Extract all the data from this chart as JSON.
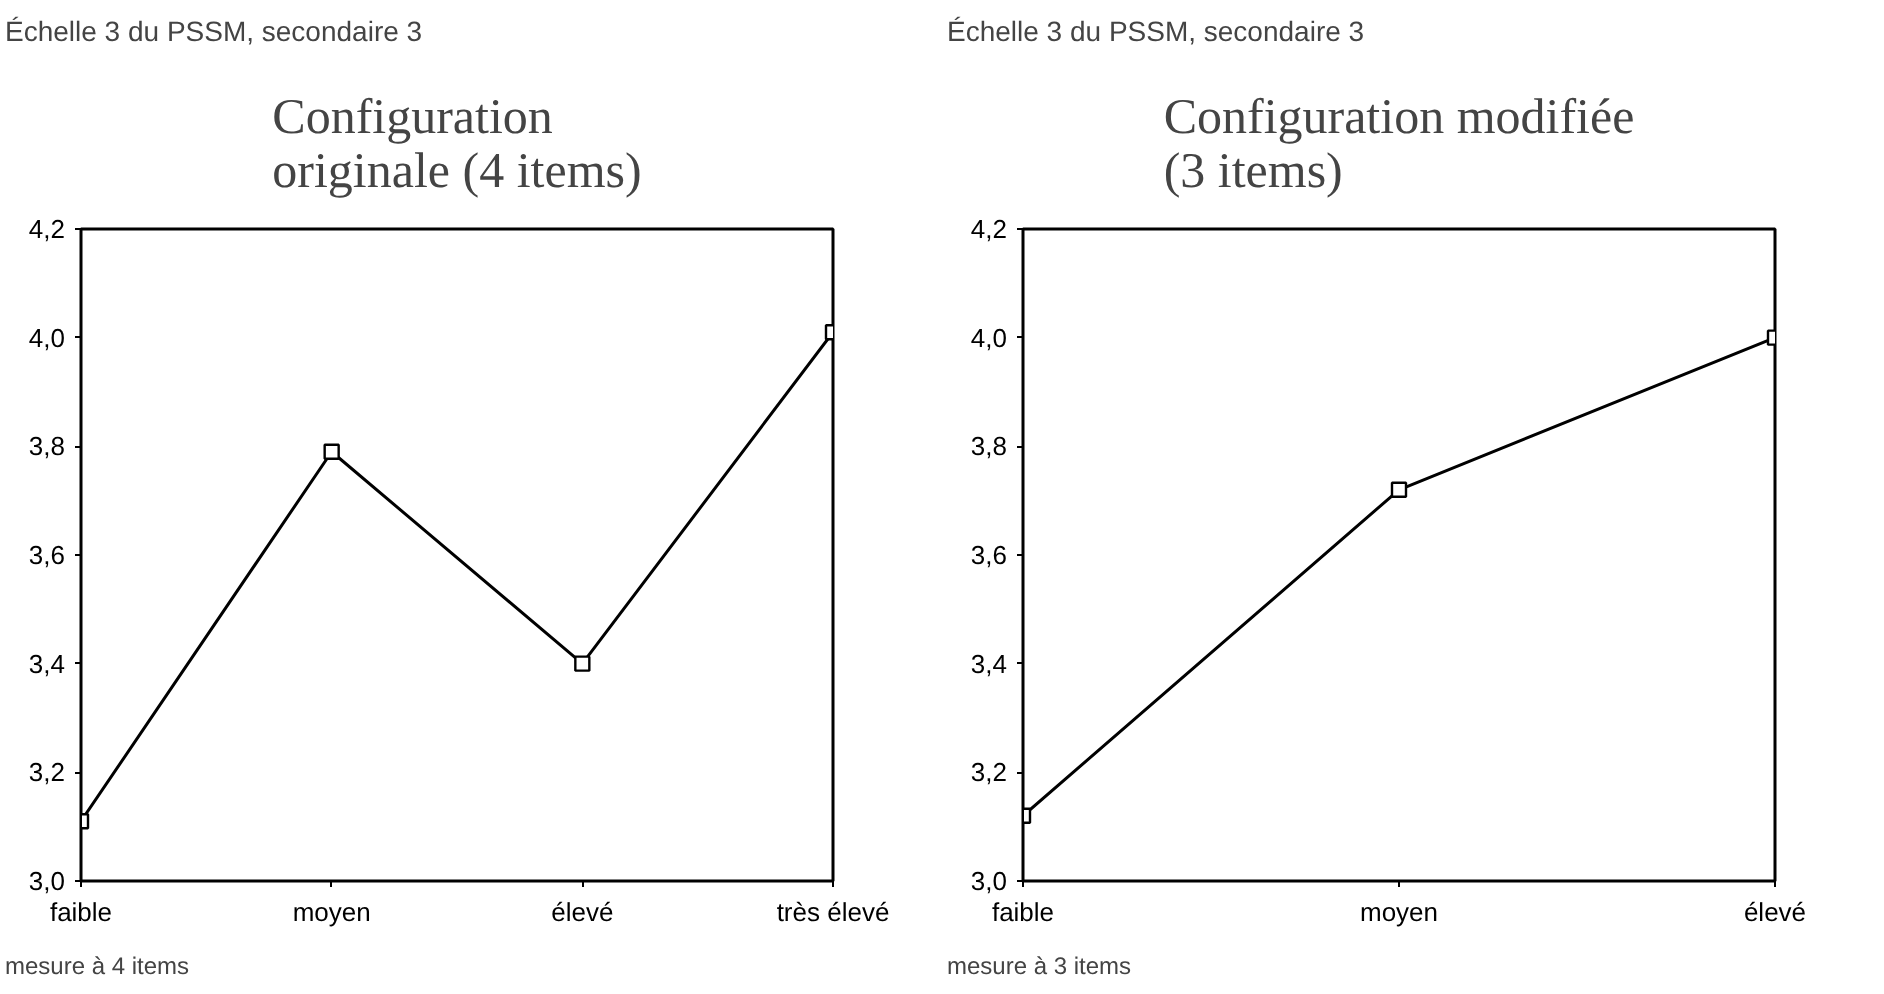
{
  "chart_data": [
    {
      "type": "line",
      "title": "Configuration originale (4 items)",
      "subtitle": "Échelle 3 du PSSM, secondaire 3",
      "xlabel": "mesure à 4 items",
      "categories": [
        "faible",
        "moyen",
        "élevé",
        "très élevé"
      ],
      "values": [
        3.11,
        3.79,
        3.4,
        4.01
      ],
      "color": "#000000",
      "marker": "square",
      "line_style": "solid",
      "grid": false,
      "ylim": [
        3.0,
        4.2
      ],
      "yticks": [
        {
          "value": 3.0,
          "label": "3,0"
        },
        {
          "value": 3.2,
          "label": "3,2"
        },
        {
          "value": 3.4,
          "label": "3,4"
        },
        {
          "value": 3.6,
          "label": "3,6"
        },
        {
          "value": 3.8,
          "label": "3,8"
        },
        {
          "value": 4.0,
          "label": "4,0"
        },
        {
          "value": 4.2,
          "label": "4,2"
        }
      ]
    },
    {
      "type": "line",
      "title": "Configuration modifiée (3 items)",
      "subtitle": "Échelle 3 du PSSM, secondaire 3",
      "xlabel": "mesure à 3 items",
      "categories": [
        "faible",
        "moyen",
        "élevé"
      ],
      "values": [
        3.12,
        3.72,
        4.0
      ],
      "color": "#000000",
      "marker": "square",
      "line_style": "solid",
      "grid": false,
      "ylim": [
        3.0,
        4.2
      ],
      "yticks": [
        {
          "value": 3.0,
          "label": "3,0"
        },
        {
          "value": 3.2,
          "label": "3,2"
        },
        {
          "value": 3.4,
          "label": "3,4"
        },
        {
          "value": 3.6,
          "label": "3,6"
        },
        {
          "value": 3.8,
          "label": "3,8"
        },
        {
          "value": 4.0,
          "label": "4,0"
        },
        {
          "value": 4.2,
          "label": "4,2"
        }
      ]
    }
  ]
}
